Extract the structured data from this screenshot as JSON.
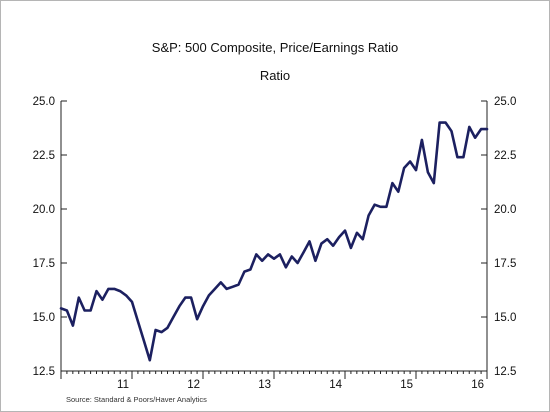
{
  "chart_data": {
    "type": "line",
    "title": "S&P: 500 Composite, Price/Earnings Ratio",
    "subtitle": "Ratio",
    "source": "Source:  Standard & Poors/Haver Analytics",
    "ylim": [
      12.5,
      25.0
    ],
    "y_ticks": [
      "25.0",
      "22.5",
      "20.0",
      "17.5",
      "15.0",
      "12.5"
    ],
    "y_tick_values": [
      25.0,
      22.5,
      20.0,
      17.5,
      15.0,
      12.5
    ],
    "xlim": [
      2010,
      2016
    ],
    "x_tick_labels": [
      "11",
      "12",
      "13",
      "14",
      "15",
      "16"
    ],
    "x_tick_values": [
      2011,
      2012,
      2013,
      2014,
      2015,
      2016
    ],
    "grid": false,
    "line_color": "#1c2060",
    "series": [
      {
        "x": [
          2010.0,
          2010.083,
          2010.167,
          2010.25,
          2010.333,
          2010.417,
          2010.5,
          2010.583,
          2010.667,
          2010.75,
          2010.833,
          2010.917,
          2011.0,
          2011.083,
          2011.167,
          2011.25,
          2011.333,
          2011.417,
          2011.5,
          2011.583,
          2011.667,
          2011.75,
          2011.833,
          2011.917,
          2012.0,
          2012.083,
          2012.167,
          2012.25,
          2012.333,
          2012.417,
          2012.5,
          2012.583,
          2012.667,
          2012.75,
          2012.833,
          2012.917,
          2013.0,
          2013.083,
          2013.167,
          2013.25,
          2013.333,
          2013.417,
          2013.5,
          2013.583,
          2013.667,
          2013.75,
          2013.833,
          2013.917,
          2014.0,
          2014.083,
          2014.167,
          2014.25,
          2014.333,
          2014.417,
          2014.5,
          2014.583,
          2014.667,
          2014.75,
          2014.833,
          2014.917,
          2015.0,
          2015.083,
          2015.167,
          2015.25,
          2015.333,
          2015.417,
          2015.5,
          2015.583,
          2015.667,
          2015.75,
          2015.833,
          2015.917,
          2016.0
        ],
        "values": [
          15.4,
          15.3,
          14.6,
          15.9,
          15.3,
          15.3,
          16.2,
          15.8,
          16.3,
          16.3,
          16.2,
          16.0,
          15.7,
          14.8,
          13.9,
          13.0,
          14.4,
          14.3,
          14.5,
          15.0,
          15.5,
          15.9,
          15.9,
          14.9,
          15.5,
          16.0,
          16.3,
          16.6,
          16.3,
          16.4,
          16.5,
          17.1,
          17.2,
          17.9,
          17.6,
          17.9,
          17.7,
          17.9,
          17.3,
          17.8,
          17.5,
          18.0,
          18.5,
          17.6,
          18.4,
          18.6,
          18.3,
          18.7,
          19.0,
          18.2,
          18.9,
          18.6,
          19.7,
          20.2,
          20.1,
          20.1,
          21.2,
          20.8,
          21.9,
          22.2,
          21.8,
          23.2,
          21.7,
          21.2,
          24.0,
          24.0,
          23.6,
          22.4,
          22.4,
          23.8,
          23.3,
          23.7,
          23.7
        ]
      }
    ]
  }
}
